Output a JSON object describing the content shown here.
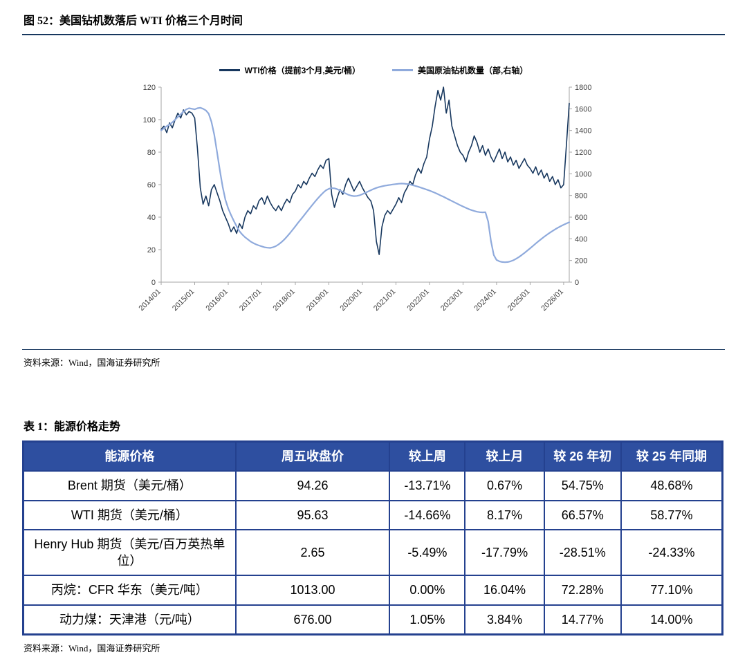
{
  "page": {
    "figure_title": "图 52：美国钻机数落后 WTI 价格三个月时间",
    "figure_source": "资料来源：Wind，国海证券研究所",
    "table_title": "表 1：能源价格走势",
    "table_source": "资料来源：Wind，国海证券研究所"
  },
  "colors": {
    "wti_line": "#17375e",
    "rig_line": "#8faadc",
    "table_header_bg": "#2e4fa0",
    "table_border": "#24418f",
    "rule": "#17375e",
    "axis": "#a6a6a6"
  },
  "chart_data": {
    "type": "line",
    "title": "",
    "legend_position": "top",
    "grid": false,
    "x_frequency": "monthly",
    "x_range": [
      "2014/01",
      "2026/03"
    ],
    "x_labels": [
      "2014/01",
      "2015/01",
      "2016/01",
      "2017/01",
      "2018/01",
      "2019/01",
      "2020/01",
      "2021/01",
      "2022/01",
      "2023/01",
      "2024/01",
      "2025/01",
      "2026/01"
    ],
    "left_axis": {
      "min": 0,
      "max": 120,
      "step": 20,
      "ticks": [
        0,
        20,
        40,
        60,
        80,
        100,
        120
      ]
    },
    "right_axis": {
      "min": 0,
      "max": 1800,
      "step": 200,
      "ticks": [
        0,
        200,
        400,
        600,
        800,
        1000,
        1200,
        1400,
        1600,
        1800
      ]
    },
    "series": [
      {
        "name": "WTI价格（提前3个月,美元/桶）",
        "axis": "left",
        "color": "#17375e",
        "values": [
          94,
          96,
          92,
          98,
          95,
          100,
          104,
          101,
          106,
          103,
          105,
          104,
          101,
          82,
          58,
          48,
          53,
          47,
          57,
          60,
          55,
          50,
          44,
          40,
          36,
          31,
          34,
          30,
          36,
          33,
          40,
          44,
          42,
          47,
          45,
          50,
          52,
          48,
          53,
          49,
          46,
          44,
          47,
          44,
          48,
          51,
          49,
          54,
          56,
          60,
          58,
          62,
          60,
          64,
          67,
          65,
          69,
          72,
          70,
          75,
          76,
          54,
          46,
          52,
          57,
          54,
          60,
          64,
          60,
          56,
          59,
          62,
          58,
          55,
          52,
          50,
          44,
          25,
          17,
          34,
          41,
          44,
          42,
          45,
          48,
          52,
          49,
          55,
          58,
          62,
          60,
          66,
          70,
          67,
          73,
          77,
          88,
          96,
          108,
          118,
          112,
          120,
          104,
          112,
          96,
          90,
          84,
          80,
          78,
          74,
          80,
          84,
          90,
          86,
          80,
          84,
          78,
          82,
          77,
          74,
          78,
          82,
          76,
          80,
          74,
          77,
          72,
          75,
          70,
          73,
          76,
          72,
          70,
          67,
          71,
          66,
          69,
          64,
          67,
          62,
          65,
          60,
          63,
          58,
          60,
          85,
          110
        ]
      },
      {
        "name": "美国原油钻机数量（部,右轴）",
        "axis": "right",
        "color": "#8faadc",
        "values": [
          1400,
          1420,
          1440,
          1455,
          1475,
          1500,
          1525,
          1550,
          1575,
          1595,
          1605,
          1600,
          1595,
          1605,
          1610,
          1600,
          1585,
          1555,
          1480,
          1360,
          1200,
          1030,
          880,
          760,
          680,
          620,
          565,
          515,
          470,
          440,
          415,
          395,
          375,
          360,
          348,
          338,
          330,
          322,
          318,
          316,
          322,
          332,
          348,
          368,
          392,
          420,
          450,
          482,
          515,
          548,
          580,
          612,
          645,
          678,
          710,
          742,
          772,
          800,
          826,
          848,
          862,
          868,
          866,
          858,
          846,
          832,
          818,
          806,
          798,
          794,
          796,
          802,
          812,
          824,
          836,
          848,
          860,
          870,
          878,
          884,
          890,
          894,
          898,
          902,
          905,
          908,
          910,
          909,
          906,
          901,
          895,
          888,
          880,
          872,
          863,
          854,
          845,
          835,
          824,
          812,
          800,
          788,
          775,
          762,
          749,
          736,
          723,
          710,
          698,
          686,
          675,
          665,
          657,
          650,
          646,
          644,
          645,
          560,
          380,
          250,
          205,
          192,
          186,
          184,
          186,
          192,
          202,
          216,
          232,
          250,
          270,
          291,
          312,
          334,
          356,
          377,
          398,
          418,
          437,
          455,
          472,
          488,
          503,
          517,
          530,
          542,
          553
        ]
      }
    ]
  },
  "table": {
    "headers": [
      "能源价格",
      "周五收盘价",
      "较上周",
      "较上月",
      "较 26 年初",
      "较 25 年同期"
    ],
    "rows": [
      [
        "Brent 期货（美元/桶）",
        "94.26",
        "-13.71%",
        "0.67%",
        "54.75%",
        "48.68%"
      ],
      [
        "WTI 期货（美元/桶）",
        "95.63",
        "-14.66%",
        "8.17%",
        "66.57%",
        "58.77%"
      ],
      [
        "Henry Hub 期货（美元/百万英热单位）",
        "2.65",
        "-5.49%",
        "-17.79%",
        "-28.51%",
        "-24.33%"
      ],
      [
        "丙烷：CFR 华东（美元/吨）",
        "1013.00",
        "0.00%",
        "16.04%",
        "72.28%",
        "77.10%"
      ],
      [
        "动力煤：天津港（元/吨）",
        "676.00",
        "1.05%",
        "3.84%",
        "14.77%",
        "14.00%"
      ]
    ]
  }
}
